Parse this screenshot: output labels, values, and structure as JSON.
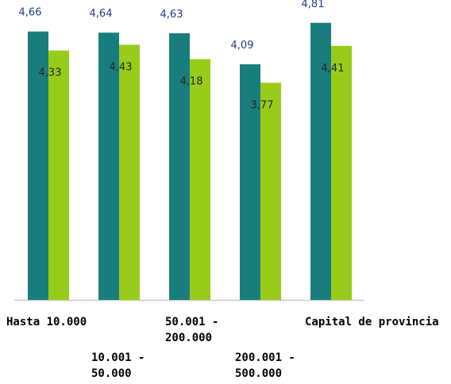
{
  "chart_data": {
    "type": "bar",
    "categories": [
      [
        "Hasta 10.000"
      ],
      [
        "10.001 -",
        "50.000"
      ],
      [
        "50.001 -",
        "200.000"
      ],
      [
        "200.001 -",
        "500.000"
      ],
      [
        "Capital de provincia"
      ]
    ],
    "series": [
      {
        "values": [
          4.66,
          4.64,
          4.63,
          4.09,
          4.81
        ],
        "labels": [
          "4,66",
          "4,64",
          "4,63",
          "4,09",
          "4,81"
        ],
        "color": "#1a7d7d",
        "label_color": "#1f3a8a"
      },
      {
        "values": [
          4.33,
          4.43,
          4.18,
          3.77,
          4.41
        ],
        "labels": [
          "4,33",
          "4,43",
          "4,18",
          "3,77",
          "4,41"
        ],
        "color": "#99cc1a",
        "label_color": "#222222"
      }
    ],
    "ylim": [
      0,
      5
    ],
    "grid": false,
    "legend": "none"
  }
}
